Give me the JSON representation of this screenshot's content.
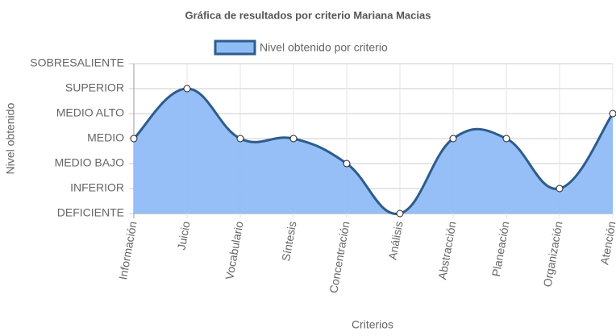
{
  "chart_data": {
    "type": "line",
    "title": "Gráfica de resultados por criterio Mariana Macias",
    "x_label": "Criterios",
    "y_label": "Nivel obtenido",
    "categories": [
      "Información",
      "Juicio",
      "Vocabulario",
      "Síntesis",
      "Concentración",
      "Análisis",
      "Abstracción",
      "Planeación",
      "Organización",
      "Atención"
    ],
    "series": [
      {
        "name": "Nivel obtenido por criterio",
        "color": "#2e5c8c",
        "fill": "#8fbcf5",
        "values": [
          3,
          5,
          3,
          3,
          2,
          0,
          3,
          3,
          1,
          4
        ]
      }
    ],
    "ylim": [
      0,
      6
    ],
    "yticks": [
      {
        "value": 0,
        "label": "DEFICIENTE"
      },
      {
        "value": 1,
        "label": "INFERIOR"
      },
      {
        "value": 2,
        "label": "MEDIO BAJO"
      },
      {
        "value": 3,
        "label": "MEDIO"
      },
      {
        "value": 4,
        "label": "MEDIO ALTO"
      },
      {
        "value": 5,
        "label": "SUPERIOR"
      },
      {
        "value": 6,
        "label": "SOBRESALIENTE"
      }
    ],
    "grid": true,
    "legend": "top"
  }
}
